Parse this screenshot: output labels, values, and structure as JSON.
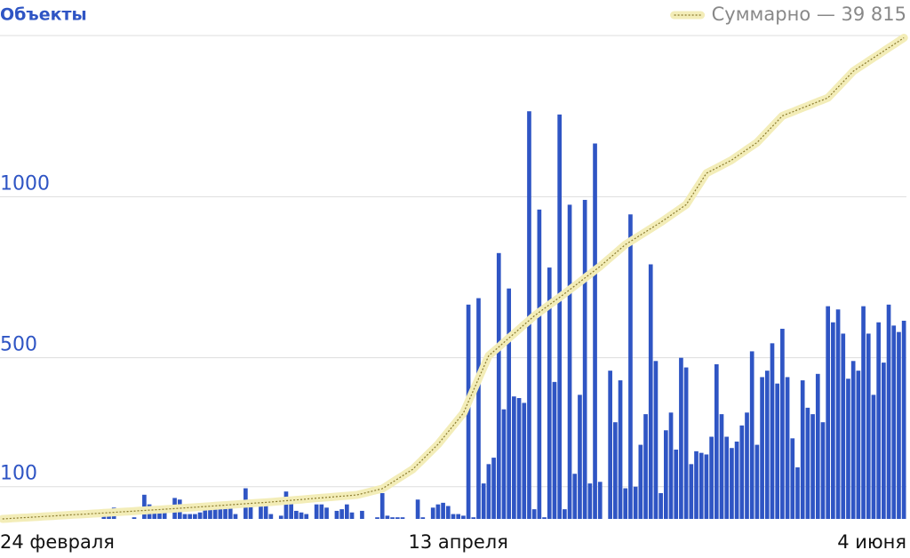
{
  "chart_data": {
    "type": "bar",
    "title": "Объекты",
    "categories": [
      "24 февраля",
      null,
      null,
      null,
      null,
      null,
      null,
      null,
      null,
      null,
      null,
      null,
      null,
      null,
      null,
      null,
      null,
      null,
      null,
      null,
      null,
      null,
      null,
      null,
      null,
      null,
      null,
      null,
      null,
      null,
      null,
      null,
      null,
      null,
      null,
      null,
      null,
      null,
      null,
      null,
      null,
      null,
      null,
      null,
      null,
      null,
      null,
      null,
      null,
      null,
      null,
      null,
      null,
      null,
      null,
      null,
      null,
      null,
      null,
      null,
      null,
      null,
      null,
      null,
      null,
      null,
      null,
      null,
      null,
      null,
      null,
      null,
      null,
      null,
      null,
      null,
      null,
      null,
      null,
      null,
      null,
      null,
      null,
      null,
      null,
      null,
      null,
      null,
      null,
      null,
      "13 апреля",
      null,
      null,
      null,
      null,
      null,
      null,
      null,
      null,
      null,
      null,
      null,
      null,
      null,
      null,
      null,
      null,
      null,
      null,
      null,
      null,
      null,
      null,
      null,
      null,
      null,
      null,
      null,
      null,
      null,
      null,
      null,
      null,
      null,
      null,
      null,
      null,
      null,
      null,
      null,
      null,
      null,
      null,
      null,
      null,
      null,
      null,
      null,
      null,
      null,
      null,
      null,
      null,
      null,
      null,
      null,
      null,
      null,
      null,
      null,
      null,
      null,
      null,
      null,
      null,
      null,
      null,
      null,
      null,
      null,
      null,
      null,
      null,
      null,
      null,
      null,
      null,
      null,
      null,
      null,
      null,
      null,
      null,
      null,
      null,
      null,
      null,
      null,
      "4 июня"
    ],
    "series": [
      {
        "name": "Объекты",
        "color": "#2f55c4",
        "values": [
          0,
          0,
          0,
          0,
          0,
          0,
          0,
          0,
          0,
          0,
          0,
          0,
          0,
          0,
          0,
          0,
          0,
          0,
          0,
          0,
          10,
          20,
          35,
          0,
          0,
          0,
          5,
          0,
          75,
          45,
          20,
          30,
          30,
          0,
          65,
          60,
          15,
          15,
          15,
          20,
          30,
          40,
          35,
          40,
          45,
          55,
          15,
          0,
          95,
          60,
          0,
          45,
          40,
          15,
          0,
          10,
          85,
          65,
          25,
          20,
          15,
          0,
          45,
          45,
          35,
          0,
          25,
          30,
          45,
          20,
          0,
          25,
          0,
          0,
          5,
          80,
          10,
          5,
          5,
          5,
          0,
          0,
          60,
          5,
          0,
          35,
          45,
          50,
          40,
          15,
          15,
          10,
          665,
          5,
          685,
          110,
          170,
          190,
          825,
          340,
          715,
          380,
          375,
          360,
          1265,
          30,
          960,
          5,
          780,
          425,
          1255,
          30,
          975,
          140,
          385,
          990,
          110,
          1165,
          115,
          0,
          460,
          300,
          430,
          95,
          945,
          100,
          230,
          325,
          790,
          490,
          80,
          275,
          330,
          215,
          500,
          470,
          170,
          210,
          205,
          200,
          255,
          480,
          325,
          255,
          220,
          240,
          290,
          330,
          520,
          230,
          440,
          460,
          545,
          420,
          590,
          440,
          250,
          160,
          430,
          345,
          325,
          450,
          300,
          660,
          610,
          650,
          575,
          435,
          490,
          460,
          660,
          575,
          385,
          610,
          485,
          665,
          600,
          580,
          615
        ]
      },
      {
        "name": "Суммарно — 39 815",
        "color": "#f3edb8",
        "axis": "y2",
        "type": "line",
        "values": [
          0,
          25,
          50,
          75,
          100,
          120,
          145,
          170,
          195,
          220,
          245,
          270,
          295,
          320,
          345,
          365,
          390,
          415,
          440,
          465,
          490,
          515,
          545,
          570,
          595,
          620,
          650,
          675,
          700,
          725,
          750,
          775,
          805,
          830,
          855,
          880,
          910,
          940,
          965,
          995,
          1025,
          1055,
          1080,
          1110,
          1140,
          1170,
          1200,
          1225,
          1255,
          1285,
          1315,
          1340,
          1370,
          1400,
          1435,
          1470,
          1505,
          1540,
          1570,
          1605,
          1640,
          1675,
          1710,
          1745,
          1780,
          1810,
          1845,
          1880,
          1915,
          1950,
          1985,
          2090,
          2190,
          2295,
          2395,
          2500,
          2765,
          3035,
          3300,
          3565,
          3835,
          4100,
          4515,
          4930,
          5345,
          5760,
          6175,
          6690,
          7205,
          7720,
          8235,
          8750,
          9700,
          10650,
          11600,
          12550,
          13500,
          13870,
          14230,
          14600,
          14970,
          15330,
          15700,
          16070,
          16430,
          16800,
          17110,
          17420,
          17730,
          18030,
          18340,
          18650,
          18970,
          19290,
          19610,
          19940,
          20260,
          20580,
          20900,
          21260,
          21620,
          21980,
          22340,
          22700,
          22960,
          23230,
          23490,
          23760,
          24020,
          24290,
          24550,
          24840,
          25130,
          25420,
          25710,
          26000,
          26650,
          27300,
          27950,
          28600,
          28820,
          29040,
          29260,
          29480,
          29700,
          29990,
          30280,
          30570,
          30860,
          31150,
          31590,
          32030,
          32470,
          32910,
          33350,
          33520,
          33680,
          33850,
          34020,
          34180,
          34350,
          34520,
          34680,
          34850,
          35290,
          35730,
          36170,
          36610,
          37050,
          37330,
          37600,
          37880,
          38160,
          38430,
          38710,
          38990,
          39260,
          39540,
          39815
        ]
      }
    ],
    "ylim": [
      0,
      1500
    ],
    "yticks": [
      100,
      500,
      1000
    ],
    "y2lim": [
      0,
      40000
    ],
    "grid": true,
    "legend": "top-right"
  }
}
